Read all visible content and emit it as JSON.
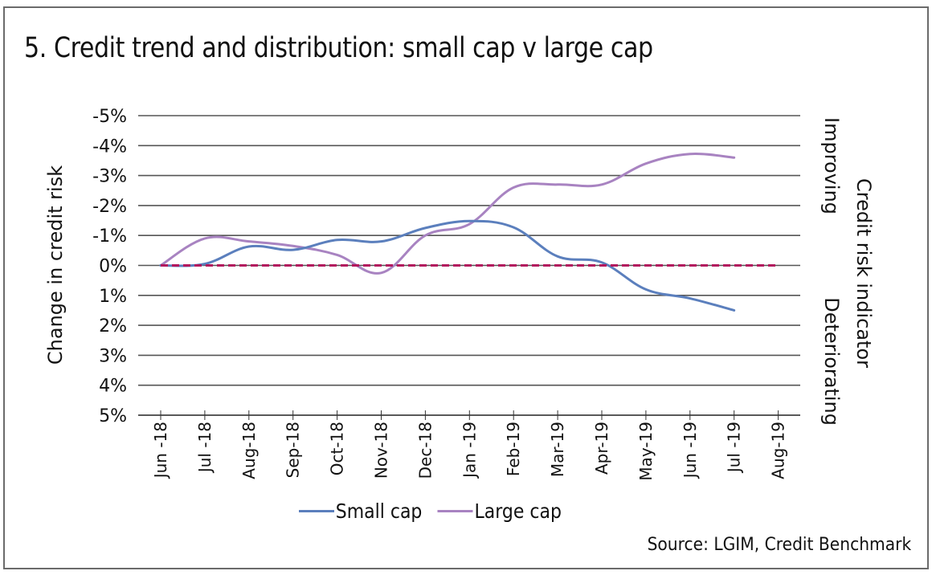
{
  "title": "5. Credit trend and distribution: small cap v large cap",
  "source": "Source: LGIM, Credit Benchmark",
  "colors": {
    "small_cap": "#5b7fbd",
    "large_cap": "#a883c1",
    "zero_line": "#b3175e",
    "grid": "#555555",
    "frame": "#6b6b6b"
  },
  "legend": [
    {
      "label": "Small cap",
      "color": "#5b7fbd"
    },
    {
      "label": "Large cap",
      "color": "#a883c1"
    }
  ],
  "chart_data": {
    "type": "line",
    "title": "5. Credit trend and distribution: small cap v large cap",
    "xlabel": "",
    "ylabel": "Change in credit risk",
    "y2label": "Credit risk indicator",
    "y2_annotations": {
      "top": "Improving",
      "bottom": "Deteriorating"
    },
    "y_inverted": true,
    "ylim": [
      -5,
      5
    ],
    "y_ticks": [
      -5,
      -4,
      -3,
      -2,
      -1,
      0,
      1,
      2,
      3,
      4,
      5
    ],
    "y_tick_labels": [
      "-5%",
      "-4%",
      "-3%",
      "-2%",
      "-1%",
      "0%",
      "1%",
      "2%",
      "3%",
      "4%",
      "5%"
    ],
    "categories": [
      "Jun -18",
      "Jul -18",
      "Aug-18",
      "Sep-18",
      "Oct-18",
      "Nov-18",
      "Dec-18",
      "Jan -19",
      "Feb-19",
      "Mar-19",
      "Apr-19",
      "May-19",
      "Jun -19",
      "Jul -19",
      "Aug-19"
    ],
    "grid": true,
    "legend_position": "bottom",
    "series": [
      {
        "name": "Small cap",
        "unit": "%",
        "values": [
          0.0,
          -0.05,
          -0.63,
          -0.52,
          -0.85,
          -0.8,
          -1.25,
          -1.48,
          -1.27,
          -0.3,
          -0.1,
          0.8,
          1.1,
          1.5,
          null
        ]
      },
      {
        "name": "Large cap",
        "unit": "%",
        "values": [
          0.0,
          -0.9,
          -0.8,
          -0.65,
          -0.35,
          0.25,
          -1.0,
          -1.38,
          -2.6,
          -2.7,
          -2.7,
          -3.4,
          -3.72,
          -3.6,
          null
        ]
      },
      {
        "name": "Zero reference",
        "style": "dashed",
        "values": [
          0,
          0,
          0,
          0,
          0,
          0,
          0,
          0,
          0,
          0,
          0,
          0,
          0,
          0,
          0
        ]
      }
    ]
  }
}
